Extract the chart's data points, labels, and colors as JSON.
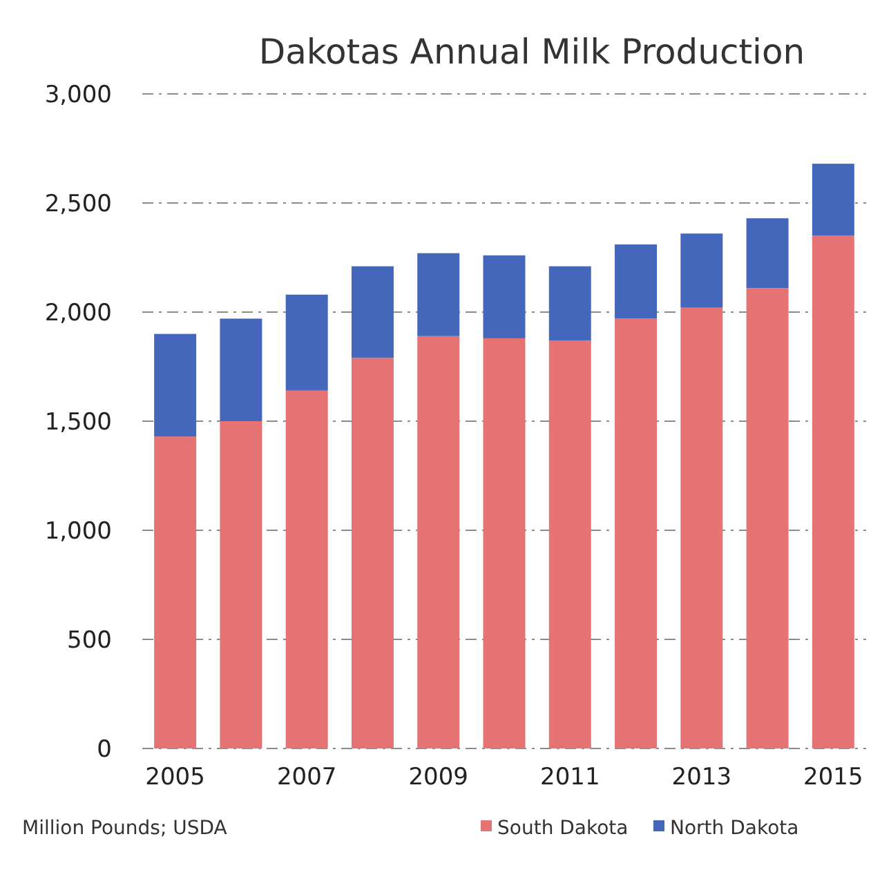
{
  "chart_data": {
    "type": "bar",
    "title": "Dakotas Annual Milk Production",
    "stacked": true,
    "categories": [
      "2005",
      null,
      "2007",
      null,
      "2009",
      null,
      "2011",
      null,
      "2013",
      null,
      "2015"
    ],
    "series": [
      {
        "name": "South Dakota",
        "color": "#e57373",
        "values": [
          1430,
          1500,
          1640,
          1790,
          1890,
          1880,
          1870,
          1970,
          2020,
          2110,
          2350
        ]
      },
      {
        "name": "North Dakota",
        "color": "#4466bb",
        "values": [
          470,
          470,
          440,
          420,
          380,
          380,
          340,
          340,
          340,
          320,
          330
        ]
      }
    ],
    "ylim": [
      0,
      3000
    ],
    "yticks": [
      {
        "value": 0,
        "label": "0"
      },
      {
        "value": 500,
        "label": "500"
      },
      {
        "value": 1000,
        "label": "1,000"
      },
      {
        "value": 1500,
        "label": "1,500"
      },
      {
        "value": 2000,
        "label": "2,000"
      },
      {
        "value": 2500,
        "label": "2,500"
      },
      {
        "value": 3000,
        "label": "3,000"
      }
    ],
    "grid": "y",
    "legend": "bottom right",
    "annotations": [
      "Million Pounds; USDA"
    ]
  }
}
